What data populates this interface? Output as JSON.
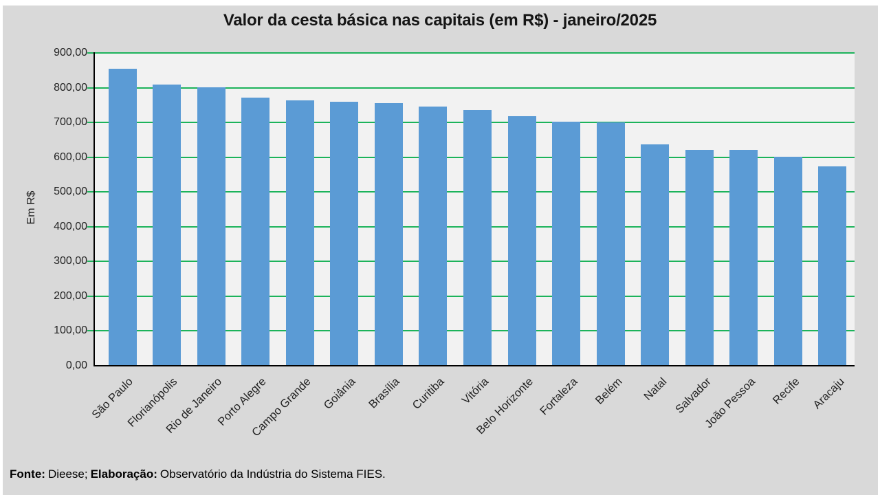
{
  "title": "Valor da cesta básica nas capitais (em R$) - janeiro/2025",
  "chart_data": {
    "type": "bar",
    "title": "Valor da cesta básica nas capitais (em R$) - janeiro/2025",
    "categories": [
      "São Paulo",
      "Florianópolis",
      "Rio de Janeiro",
      "Porto Alegre",
      "Campo Grande",
      "Goiânia",
      "Brasília",
      "Curitiba",
      "Vitória",
      "Belo Horizonte",
      "Fortaleza",
      "Belém",
      "Natal",
      "Salvador",
      "João Pessoa",
      "Recife",
      "Aracaju"
    ],
    "values": [
      852,
      808,
      800,
      770,
      762,
      757,
      754,
      744,
      734,
      717,
      701,
      699,
      634,
      619,
      619,
      600,
      572
    ],
    "xlabel": "",
    "ylabel": "Em R$",
    "ylim": [
      0,
      900
    ],
    "ytick_step": 100,
    "ytick_labels": [
      "0,00",
      "100,00",
      "200,00",
      "300,00",
      "400,00",
      "500,00",
      "600,00",
      "700,00",
      "800,00",
      "900,00"
    ],
    "grid": true,
    "legend": false,
    "bar_color": "#5b9bd5",
    "grid_color": "#1cb35b",
    "plot_bg": "#f2f2f2",
    "canvas_bg": "#d9d9d9"
  },
  "footer": {
    "source_label": "Fonte:",
    "source_value": "Dieese;",
    "elaboration_label": "Elaboração:",
    "elaboration_value": "Observatório da Indústria do Sistema FIES."
  }
}
